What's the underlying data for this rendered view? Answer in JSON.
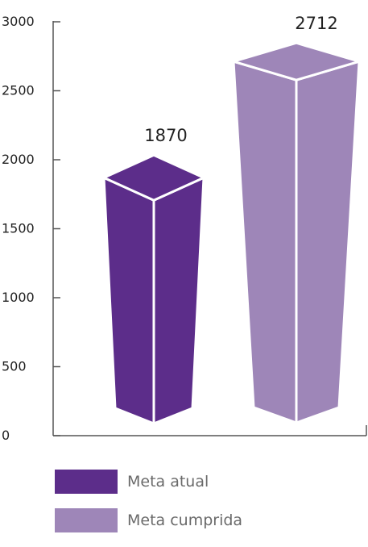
{
  "chart_data": {
    "type": "bar",
    "categories": [
      "Meta atual",
      "Meta cumprida"
    ],
    "values": [
      1870,
      2712
    ],
    "data_labels": [
      "1870",
      "2712"
    ],
    "colors": [
      "#5c2d8a",
      "#9e86b8"
    ],
    "ylim": [
      0,
      3000
    ],
    "yticks": [
      0,
      500,
      1000,
      1500,
      2000,
      2500,
      3000
    ],
    "ytick_labels": [
      "0",
      "500",
      "1000",
      "1500",
      "2000",
      "2500",
      "3000"
    ],
    "style": "3d-prism",
    "grid": false,
    "legend_position": "bottom-left",
    "title": "",
    "xlabel": "",
    "ylabel": ""
  },
  "legend": {
    "items": [
      {
        "label": "Meta atual",
        "color": "#5c2d8a"
      },
      {
        "label": "Meta cumprida",
        "color": "#9e86b8"
      }
    ]
  }
}
